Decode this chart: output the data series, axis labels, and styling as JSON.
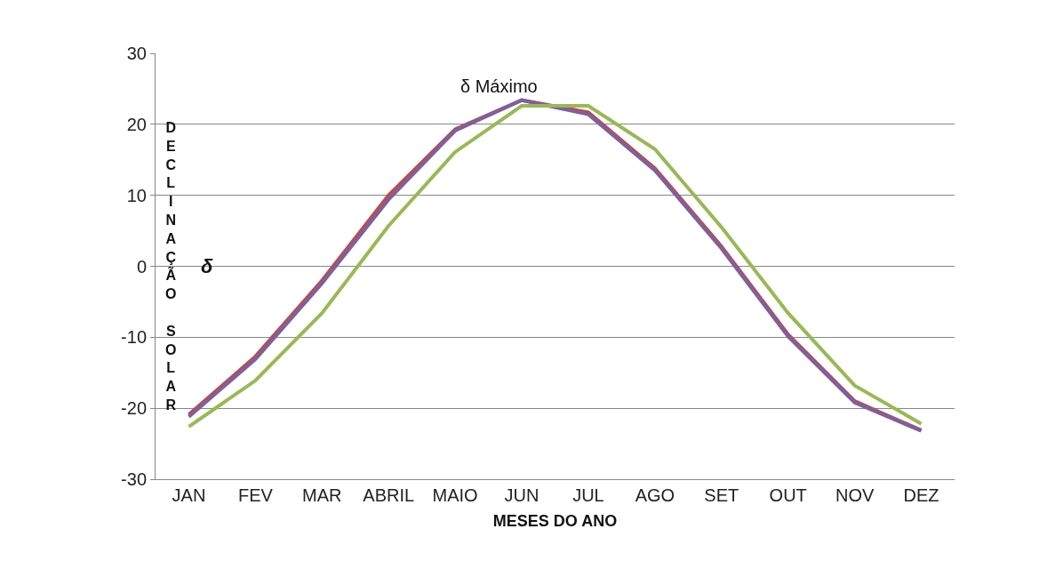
{
  "chart_data": {
    "type": "line",
    "xlabel": "MESES DO ANO",
    "ylabel": "DECLINAÇÃO SOLAR",
    "annotations": [
      "δ",
      "δ Máximo"
    ],
    "categories": [
      "JAN",
      "FEV",
      "MAR",
      "ABRIL",
      "MAIO",
      "JUN",
      "JUL",
      "AGO",
      "SET",
      "OUT",
      "NOV",
      "DEZ"
    ],
    "series": [
      {
        "color": "#be4b48",
        "values": [
          -20.9,
          -12.7,
          -2,
          10,
          19.3,
          23.4,
          21.7,
          13.8,
          2.8,
          -9.6,
          -19,
          -23.1
        ]
      },
      {
        "color": "#7d60a0",
        "values": [
          -21.2,
          -13.1,
          -2.4,
          9.4,
          19.1,
          23.4,
          21.4,
          13.5,
          2.5,
          -9.9,
          -19.2,
          -23.2
        ]
      },
      {
        "color": "#98b954",
        "values": [
          -22.6,
          -16.1,
          -6.6,
          5.7,
          16.1,
          22.6,
          22.6,
          16.5,
          5.5,
          -6.6,
          -16.8,
          -22.2
        ]
      }
    ],
    "ylim": [
      -30,
      30
    ],
    "yticks": [
      -30,
      -20,
      -10,
      0,
      10,
      20,
      30
    ],
    "grid": "y",
    "marker": "none",
    "line_style": "solid"
  }
}
